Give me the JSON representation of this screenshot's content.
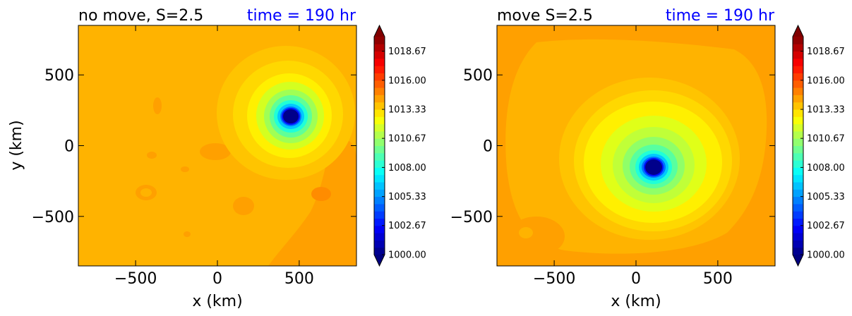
{
  "chart_data": [
    {
      "type": "contour",
      "title_left": "no move, S=2.5",
      "title_right": "time = 190 hr",
      "title_right_color": "#0000ff",
      "xlabel": "x (km)",
      "ylabel": "y (km)",
      "xlim": [
        -850,
        850
      ],
      "ylim": [
        -850,
        850
      ],
      "xticks": [
        "−500",
        "0",
        "500"
      ],
      "xtick_values": [
        -500,
        0,
        500
      ],
      "yticks": [
        "500",
        "0",
        "−500"
      ],
      "ytick_values": [
        500,
        0,
        -500
      ],
      "field": "pressure",
      "background_pressure": 1015.0,
      "center": [
        445,
        210
      ],
      "central_pressure": 1000.0,
      "colorbar": {
        "min": 1000.0,
        "max": 1020.0,
        "tick_labels": [
          "1018.67",
          "1016.00",
          "1013.33",
          "1010.67",
          "1008.00",
          "1005.33",
          "1002.67",
          "1000.00"
        ],
        "tick_values": [
          1018.67,
          1016.0,
          1013.33,
          1010.67,
          1008.0,
          1005.33,
          1002.67,
          1000.0
        ],
        "extend": "both"
      }
    },
    {
      "type": "contour",
      "title_left": "move S=2.5",
      "title_right": "time = 190 hr",
      "title_right_color": "#0000ff",
      "xlabel": "x (km)",
      "ylabel": "",
      "xlim": [
        -850,
        850
      ],
      "ylim": [
        -850,
        850
      ],
      "xticks": [
        "−500",
        "0",
        "500"
      ],
      "xtick_values": [
        -500,
        0,
        500
      ],
      "yticks": [
        "500",
        "0",
        "−500"
      ],
      "ytick_values": [
        500,
        0,
        -500
      ],
      "field": "pressure",
      "background_pressure": 1015.8,
      "center": [
        110,
        -150
      ],
      "central_pressure": 1000.0,
      "colorbar": {
        "min": 1000.0,
        "max": 1020.0,
        "tick_labels": [
          "1018.67",
          "1016.00",
          "1013.33",
          "1010.67",
          "1008.00",
          "1005.33",
          "1002.67",
          "1000.00"
        ],
        "tick_values": [
          1018.67,
          1016.0,
          1013.33,
          1010.67,
          1008.0,
          1005.33,
          1002.67,
          1000.0
        ],
        "extend": "both"
      }
    }
  ]
}
